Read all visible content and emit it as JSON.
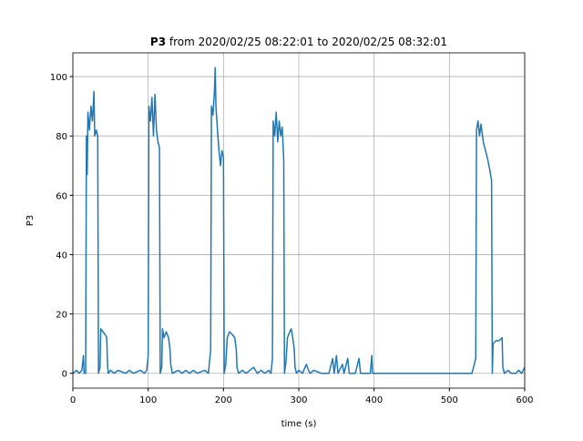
{
  "chart_data": {
    "type": "line",
    "title": {
      "bold": "P3",
      "rest": "from 2020/02/25 08:22:01 to 2020/02/25 08:32:01"
    },
    "xlabel": "time (s)",
    "ylabel": "P3",
    "xlim": [
      0,
      600
    ],
    "ylim": [
      -5,
      108
    ],
    "xticks": [
      0,
      100,
      200,
      300,
      400,
      500,
      600
    ],
    "yticks": [
      0,
      20,
      40,
      60,
      80,
      100
    ],
    "grid": true,
    "series": [
      {
        "color": "#1f77b4",
        "x": [
          0,
          5,
          8,
          12,
          14,
          15,
          17,
          18,
          19,
          20,
          22,
          24,
          26,
          28,
          29,
          31,
          33,
          34,
          36,
          37,
          40,
          43,
          45,
          46,
          47,
          50,
          55,
          60,
          70,
          75,
          80,
          90,
          95,
          98,
          100,
          101,
          103,
          105,
          107,
          109,
          111,
          113,
          115,
          116,
          118,
          119,
          121,
          124,
          127,
          129,
          130,
          132,
          140,
          145,
          150,
          155,
          160,
          165,
          175,
          180,
          183,
          184,
          186,
          188,
          189,
          190,
          192,
          194,
          196,
          198,
          200,
          201,
          203,
          205,
          208,
          212,
          215,
          217,
          218,
          220,
          225,
          230,
          240,
          245,
          250,
          255,
          260,
          263,
          265,
          266,
          268,
          270,
          272,
          274,
          276,
          278,
          280,
          281,
          283,
          285,
          288,
          290,
          292,
          294,
          295,
          297,
          300,
          305,
          310,
          313,
          315,
          320,
          330,
          340,
          345,
          347,
          350,
          352,
          358,
          360,
          365,
          367,
          375,
          380,
          382,
          395,
          397,
          398,
          400,
          450,
          500,
          530,
          535,
          536,
          538,
          540,
          542,
          545,
          548,
          551,
          554,
          556,
          557,
          558,
          562,
          566,
          570,
          571,
          573,
          578,
          582,
          588,
          592,
          596,
          600
        ],
        "values": [
          0,
          1,
          0,
          1,
          6,
          0,
          0,
          80,
          67,
          88,
          82,
          90,
          85,
          95,
          80,
          82,
          80,
          0,
          2,
          15,
          14,
          13,
          12,
          3,
          0,
          1,
          0,
          1,
          0,
          1,
          0,
          1,
          0,
          1,
          6,
          90,
          85,
          93,
          80,
          94,
          82,
          78,
          76,
          0,
          2,
          15,
          12,
          14,
          12,
          8,
          3,
          0,
          1,
          0,
          1,
          0,
          1,
          0,
          1,
          0,
          8,
          90,
          87,
          95,
          103,
          90,
          82,
          75,
          70,
          75,
          73,
          0,
          3,
          12,
          14,
          13,
          12,
          8,
          2,
          0,
          1,
          0,
          2,
          0,
          1,
          0,
          1,
          0,
          5,
          85,
          80,
          88,
          78,
          85,
          80,
          83,
          72,
          0,
          4,
          12,
          14,
          15,
          12,
          8,
          2,
          0,
          1,
          0,
          3,
          1,
          0,
          1,
          0,
          0,
          5,
          0,
          6,
          0,
          3,
          0,
          5,
          0,
          0,
          5,
          0,
          0,
          6,
          0,
          0,
          0,
          0,
          0,
          5,
          82,
          85,
          80,
          84,
          78,
          75,
          72,
          68,
          65,
          0,
          10,
          11,
          11,
          12,
          2,
          0,
          1,
          0,
          0,
          1,
          0,
          2
        ]
      }
    ]
  }
}
